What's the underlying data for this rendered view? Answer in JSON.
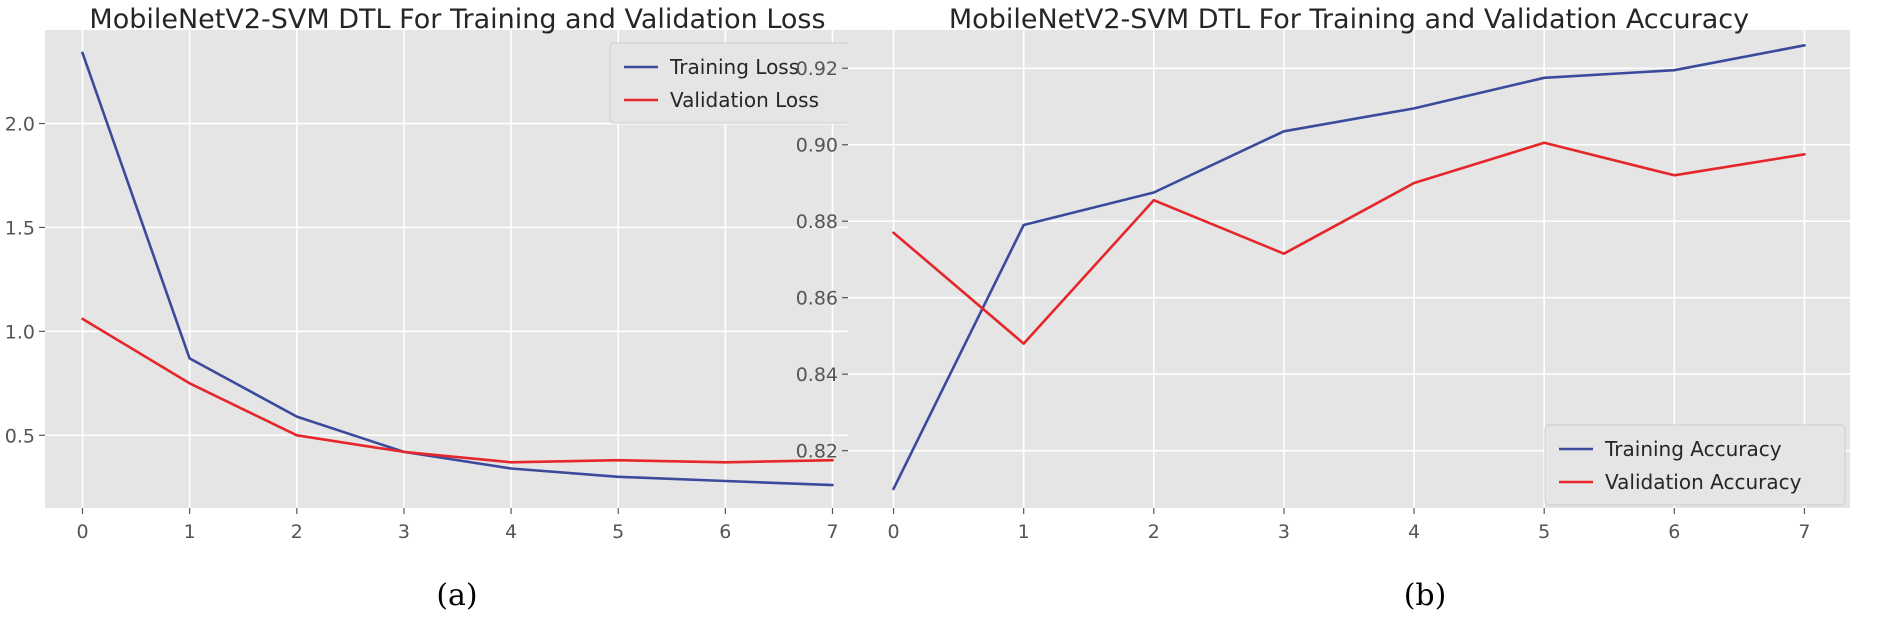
{
  "chart_data": [
    {
      "type": "line",
      "title": "MobileNetV2-SVM DTL For Training and Validation Loss",
      "caption": "(a)",
      "xlabel": "",
      "ylabel": "",
      "x": [
        0,
        1,
        2,
        3,
        4,
        5,
        6,
        7
      ],
      "xticks": [
        "0",
        "1",
        "2",
        "3",
        "4",
        "5",
        "6",
        "7"
      ],
      "yticks": [
        "0.5",
        "1.0",
        "1.5",
        "2.0"
      ],
      "ytick_values": [
        0.5,
        1.0,
        1.5,
        2.0
      ],
      "xlim": [
        -0.35,
        7.35
      ],
      "ylim": [
        0.15,
        2.45
      ],
      "grid": true,
      "legend_position": "top-right",
      "series": [
        {
          "name": "Training Loss",
          "color": "#3b4a9b",
          "values": [
            2.34,
            0.87,
            0.59,
            0.42,
            0.34,
            0.3,
            0.28,
            0.26
          ]
        },
        {
          "name": "Validation Loss",
          "color": "#e5262b",
          "values": [
            1.06,
            0.75,
            0.5,
            0.42,
            0.37,
            0.38,
            0.37,
            0.38
          ]
        }
      ]
    },
    {
      "type": "line",
      "title": "MobileNetV2-SVM DTL For Training and Validation Accuracy",
      "caption": "(b)",
      "xlabel": "",
      "ylabel": "",
      "x": [
        0,
        1,
        2,
        3,
        4,
        5,
        6,
        7
      ],
      "xticks": [
        "0",
        "1",
        "2",
        "3",
        "4",
        "5",
        "6",
        "7"
      ],
      "yticks": [
        "0.82",
        "0.84",
        "0.86",
        "0.88",
        "0.90",
        "0.92"
      ],
      "ytick_values": [
        0.82,
        0.84,
        0.86,
        0.88,
        0.9,
        0.92
      ],
      "xlim": [
        -0.35,
        7.35
      ],
      "ylim": [
        0.805,
        0.93
      ],
      "grid": true,
      "legend_position": "bottom-right",
      "series": [
        {
          "name": "Training Accuracy",
          "color": "#3b4a9b",
          "values": [
            0.81,
            0.879,
            0.8875,
            0.9035,
            0.9095,
            0.9175,
            0.9195,
            0.926
          ]
        },
        {
          "name": "Validation Accuracy",
          "color": "#e5262b",
          "values": [
            0.877,
            0.848,
            0.8855,
            0.8715,
            0.89,
            0.9005,
            0.892,
            0.8975
          ]
        }
      ]
    }
  ]
}
